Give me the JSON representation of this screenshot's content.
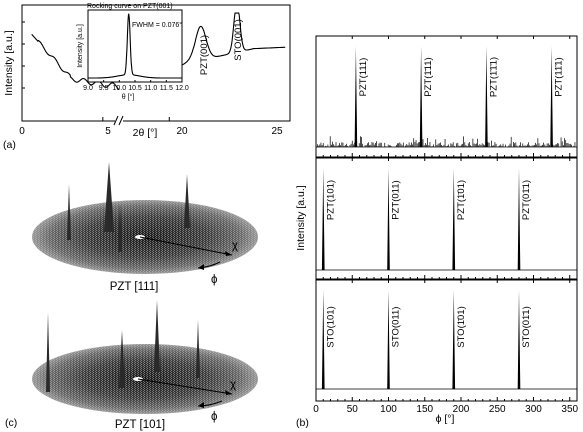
{
  "panel_a": {
    "label": "(a)",
    "ylabel": "Intensity [a.u.]",
    "xlabel": "2θ [°]",
    "ticks": [
      "0",
      "5",
      "20",
      "25"
    ],
    "peaks": [
      {
        "label": "PZT(001)"
      },
      {
        "label": "STO(001)"
      }
    ],
    "inset": {
      "title": "Rocking curve on PZT(001)",
      "ylabel": "Intensity [a.u.]",
      "xlabel": "θ [°]",
      "fwhm": "FWHM = 0.076°",
      "ticks": [
        "9.0",
        "9.5",
        "10.0",
        "10.5",
        "11.0",
        "11.5",
        "12.0"
      ]
    }
  },
  "panel_b": {
    "label": "(b)",
    "ylabel": "Intensity [a.u.]",
    "xlabel": "ϕ [°]",
    "ticks": [
      "0",
      "50",
      "100",
      "150",
      "200",
      "250",
      "300",
      "350"
    ],
    "rows": [
      {
        "peaks": [
          "PZT(111)",
          "PZT(1̄11)",
          "PZT(1̄1̄1)",
          "PZT(11̄1)"
        ]
      },
      {
        "peaks": [
          "PZT(101)",
          "PZT(011)",
          "PZT(1̄01)",
          "PZT(01̄1)"
        ]
      },
      {
        "peaks": [
          "STO(101)",
          "STO(011)",
          "STO(1̄01)",
          "STO(01̄1)"
        ]
      }
    ]
  },
  "panel_c": {
    "label": "(c)",
    "plots": [
      {
        "caption": "PZT [111]",
        "chi": "χ",
        "phi": "ϕ"
      },
      {
        "caption": "PZT [101]",
        "chi": "χ",
        "phi": "ϕ"
      }
    ]
  },
  "chart_data": [
    {
      "type": "line",
      "x_unit": "2θ (degrees)",
      "xlim": [
        0,
        25
      ],
      "x_axis_break": [
        6,
        18
      ],
      "peaks": [
        {
          "label": "PZT(001)",
          "x": 21.3
        },
        {
          "label": "STO(001)",
          "x": 22.8
        }
      ],
      "inset": {
        "type": "line",
        "xlim": [
          9.0,
          12.0
        ],
        "peak_x": 10.3,
        "fwhm": 0.076
      }
    },
    {
      "type": "line",
      "xlim": [
        0,
        360
      ],
      "rows": [
        {
          "peak_phi": [
            55,
            145,
            235,
            325
          ]
        },
        {
          "peak_phi": [
            10,
            100,
            190,
            280
          ]
        },
        {
          "peak_phi": [
            10,
            100,
            190,
            280
          ]
        }
      ]
    }
  ]
}
